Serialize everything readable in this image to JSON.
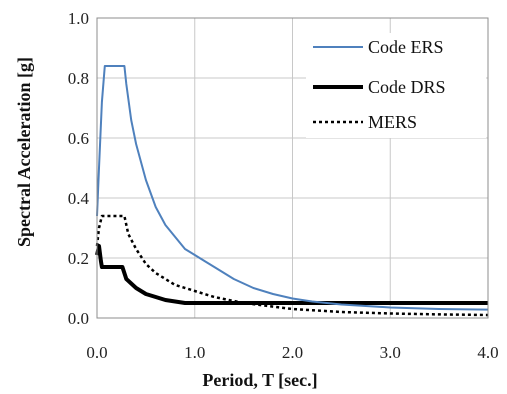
{
  "chart_data": {
    "type": "line",
    "title": "",
    "xlabel": "Period, T [sec.]",
    "ylabel": "Spectral Acceleration [g]",
    "xlim": [
      0,
      4.0
    ],
    "ylim": [
      0,
      1.0
    ],
    "x_ticks": [
      "0.0",
      "1.0",
      "2.0",
      "3.0",
      "4.0"
    ],
    "y_ticks": [
      "0.0",
      "0.2",
      "0.4",
      "0.6",
      "0.8",
      "1.0"
    ],
    "grid": true,
    "legend_position": "top-right",
    "series": [
      {
        "name": "Code ERS",
        "color": "#4f81bd",
        "line_style": "solid",
        "x": [
          0.0,
          0.02,
          0.05,
          0.08,
          0.28,
          0.3,
          0.35,
          0.4,
          0.5,
          0.6,
          0.7,
          0.8,
          0.9,
          1.0,
          1.1,
          1.2,
          1.4,
          1.6,
          1.8,
          2.0,
          2.2,
          2.5,
          3.0,
          3.5,
          4.0
        ],
        "y": [
          0.34,
          0.5,
          0.72,
          0.84,
          0.84,
          0.78,
          0.66,
          0.58,
          0.46,
          0.37,
          0.31,
          0.27,
          0.23,
          0.21,
          0.19,
          0.17,
          0.13,
          0.1,
          0.08,
          0.065,
          0.055,
          0.045,
          0.035,
          0.03,
          0.028
        ]
      },
      {
        "name": "Code DRS",
        "color": "#000000",
        "line_style": "solid-thick",
        "x": [
          0.0,
          0.02,
          0.04,
          0.05,
          0.26,
          0.3,
          0.4,
          0.5,
          0.6,
          0.7,
          0.8,
          0.9,
          1.0,
          1.2,
          1.5,
          2.0,
          2.5,
          3.0,
          3.5,
          4.0
        ],
        "y": [
          0.21,
          0.24,
          0.19,
          0.17,
          0.17,
          0.13,
          0.1,
          0.08,
          0.07,
          0.06,
          0.055,
          0.05,
          0.05,
          0.05,
          0.05,
          0.05,
          0.05,
          0.05,
          0.05,
          0.05
        ]
      },
      {
        "name": "MERS",
        "color": "#000000",
        "line_style": "dotted",
        "x": [
          0.0,
          0.02,
          0.05,
          0.28,
          0.32,
          0.4,
          0.5,
          0.6,
          0.7,
          0.8,
          1.0,
          1.2,
          1.5,
          2.0,
          2.5,
          3.0,
          3.5,
          4.0
        ],
        "y": [
          0.24,
          0.3,
          0.34,
          0.34,
          0.28,
          0.23,
          0.18,
          0.15,
          0.13,
          0.11,
          0.09,
          0.07,
          0.05,
          0.03,
          0.02,
          0.015,
          0.012,
          0.01
        ]
      }
    ]
  }
}
